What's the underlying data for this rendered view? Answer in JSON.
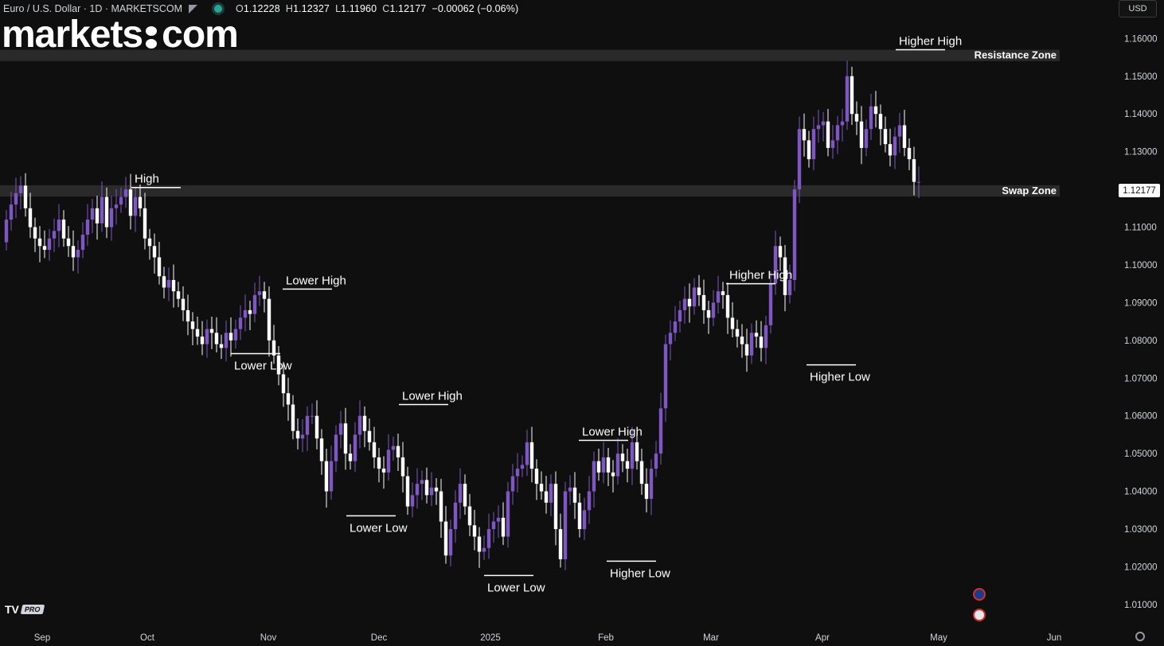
{
  "header": {
    "symbol_title": "Euro / U.S. Dollar · 1D · MARKETSCOM",
    "ohlc": {
      "o_label": "O",
      "o": "1.12228",
      "h_label": "H",
      "h": "1.12327",
      "l_label": "L",
      "l": "1.11960",
      "c_label": "C",
      "c": "1.12177",
      "change": "−0.00062 (−0.06%)"
    }
  },
  "logo": {
    "left": "markets",
    "right": "com"
  },
  "currency": "USD",
  "tv_badge": {
    "logo": "TV",
    "pro": "PRO"
  },
  "colors": {
    "background": "#0f0f0f",
    "bull_candle": "#7e57c2",
    "bear_candle": "#ffffff",
    "zone": "#2a2a2a",
    "text": "#d1d4dc"
  },
  "chart_data": {
    "type": "candlestick",
    "title": "Euro / U.S. Dollar · 1D · MARKETSCOM",
    "y_axis": {
      "ticks": [
        "1.16000",
        "1.15000",
        "1.14000",
        "1.13000",
        "1.12000",
        "1.11000",
        "1.10000",
        "1.09000",
        "1.08000",
        "1.07000",
        "1.06000",
        "1.05000",
        "1.04000",
        "1.03000",
        "1.02000",
        "1.01000"
      ],
      "range": [
        1.0045,
        1.1685
      ]
    },
    "x_axis": {
      "ticks": [
        "Sep",
        "Oct",
        "Nov",
        "Dec",
        "2025",
        "Feb",
        "Mar",
        "Apr",
        "May",
        "Jun"
      ]
    },
    "last_price": "1.12177",
    "zones": [
      {
        "label": "Resistance Zone",
        "from": 1.154,
        "to": 1.157
      },
      {
        "label": "Swap Zone",
        "from": 1.1181,
        "to": 1.1211
      }
    ],
    "annotations": [
      {
        "label": "High",
        "price": 1.1205
      },
      {
        "label": "Lower High",
        "price": 1.0936
      },
      {
        "label": "Lower Low",
        "price": 1.0765
      },
      {
        "label": "Lower High",
        "price": 1.063
      },
      {
        "label": "Lower Low",
        "price": 1.0335
      },
      {
        "label": "Lower High",
        "price": 1.0535
      },
      {
        "label": "Lower Low",
        "price": 1.0177
      },
      {
        "label": "Higher Low",
        "price": 1.0215
      },
      {
        "label": "Higher High",
        "price": 1.095
      },
      {
        "label": "Higher Low",
        "price": 1.0735
      },
      {
        "label": "Higher High",
        "price": 1.157
      }
    ],
    "close": [
      1.112,
      1.116,
      1.119,
      1.121,
      1.115,
      1.11,
      1.107,
      1.105,
      1.104,
      1.107,
      1.109,
      1.112,
      1.107,
      1.105,
      1.102,
      1.104,
      1.108,
      1.112,
      1.115,
      1.111,
      1.118,
      1.11,
      1.115,
      1.116,
      1.118,
      1.12,
      1.113,
      1.118,
      1.115,
      1.107,
      1.105,
      1.102,
      1.097,
      1.094,
      1.096,
      1.093,
      1.091,
      1.088,
      1.085,
      1.083,
      1.081,
      1.079,
      1.083,
      1.082,
      1.079,
      1.078,
      1.082,
      1.08,
      1.083,
      1.086,
      1.088,
      1.087,
      1.092,
      1.093,
      1.091,
      1.08,
      1.076,
      1.071,
      1.066,
      1.063,
      1.056,
      1.054,
      1.055,
      1.06,
      1.06,
      1.054,
      1.048,
      1.04,
      1.048,
      1.055,
      1.058,
      1.05,
      1.048,
      1.055,
      1.06,
      1.056,
      1.053,
      1.049,
      1.046,
      1.045,
      1.051,
      1.052,
      1.049,
      1.044,
      1.036,
      1.039,
      1.042,
      1.043,
      1.039,
      1.041,
      1.04,
      1.032,
      1.023,
      1.03,
      1.037,
      1.042,
      1.036,
      1.031,
      1.028,
      1.024,
      1.025,
      1.03,
      1.032,
      1.033,
      1.028,
      1.04,
      1.044,
      1.046,
      1.047,
      1.053,
      1.046,
      1.042,
      1.04,
      1.037,
      1.042,
      1.03,
      1.022,
      1.04,
      1.041,
      1.037,
      1.03,
      1.035,
      1.04,
      1.048,
      1.045,
      1.049,
      1.045,
      1.044,
      1.05,
      1.048,
      1.046,
      1.053,
      1.048,
      1.042,
      1.038,
      1.046,
      1.05,
      1.062,
      1.079,
      1.082,
      1.085,
      1.088,
      1.091,
      1.089,
      1.094,
      1.092,
      1.088,
      1.086,
      1.09,
      1.093,
      1.092,
      1.086,
      1.083,
      1.081,
      1.079,
      1.076,
      1.082,
      1.081,
      1.078,
      1.084,
      1.095,
      1.105,
      1.102,
      1.092,
      1.096,
      1.12,
      1.136,
      1.133,
      1.128,
      1.136,
      1.137,
      1.138,
      1.131,
      1.133,
      1.137,
      1.138,
      1.15,
      1.14,
      1.138,
      1.131,
      1.136,
      1.142,
      1.14,
      1.136,
      1.132,
      1.129,
      1.134,
      1.137,
      1.131,
      1.128,
      1.122,
      1.122
    ],
    "open": [
      1.106,
      1.112,
      1.116,
      1.119,
      1.121,
      1.115,
      1.11,
      1.107,
      1.105,
      1.104,
      1.107,
      1.109,
      1.112,
      1.107,
      1.105,
      1.102,
      1.104,
      1.108,
      1.112,
      1.115,
      1.111,
      1.118,
      1.11,
      1.115,
      1.116,
      1.118,
      1.12,
      1.113,
      1.118,
      1.115,
      1.107,
      1.105,
      1.102,
      1.097,
      1.094,
      1.096,
      1.093,
      1.091,
      1.088,
      1.085,
      1.083,
      1.081,
      1.079,
      1.083,
      1.082,
      1.079,
      1.078,
      1.082,
      1.08,
      1.083,
      1.086,
      1.088,
      1.087,
      1.092,
      1.093,
      1.091,
      1.08,
      1.076,
      1.071,
      1.066,
      1.063,
      1.056,
      1.054,
      1.055,
      1.06,
      1.06,
      1.054,
      1.048,
      1.04,
      1.048,
      1.055,
      1.058,
      1.05,
      1.048,
      1.055,
      1.06,
      1.056,
      1.053,
      1.049,
      1.046,
      1.045,
      1.051,
      1.052,
      1.049,
      1.044,
      1.036,
      1.039,
      1.042,
      1.043,
      1.039,
      1.041,
      1.04,
      1.032,
      1.023,
      1.03,
      1.037,
      1.042,
      1.036,
      1.031,
      1.028,
      1.024,
      1.025,
      1.03,
      1.032,
      1.033,
      1.028,
      1.04,
      1.044,
      1.046,
      1.047,
      1.053,
      1.046,
      1.042,
      1.04,
      1.037,
      1.042,
      1.03,
      1.022,
      1.04,
      1.041,
      1.037,
      1.03,
      1.035,
      1.04,
      1.048,
      1.045,
      1.049,
      1.045,
      1.044,
      1.05,
      1.048,
      1.046,
      1.053,
      1.048,
      1.042,
      1.038,
      1.046,
      1.05,
      1.062,
      1.079,
      1.082,
      1.085,
      1.088,
      1.091,
      1.089,
      1.094,
      1.092,
      1.088,
      1.086,
      1.09,
      1.093,
      1.092,
      1.086,
      1.083,
      1.081,
      1.079,
      1.076,
      1.082,
      1.081,
      1.078,
      1.084,
      1.095,
      1.105,
      1.102,
      1.092,
      1.096,
      1.12,
      1.136,
      1.133,
      1.128,
      1.136,
      1.137,
      1.138,
      1.131,
      1.133,
      1.137,
      1.138,
      1.15,
      1.14,
      1.138,
      1.131,
      1.136,
      1.142,
      1.14,
      1.136,
      1.132,
      1.129,
      1.134,
      1.137,
      1.131,
      1.128,
      1.122
    ]
  }
}
